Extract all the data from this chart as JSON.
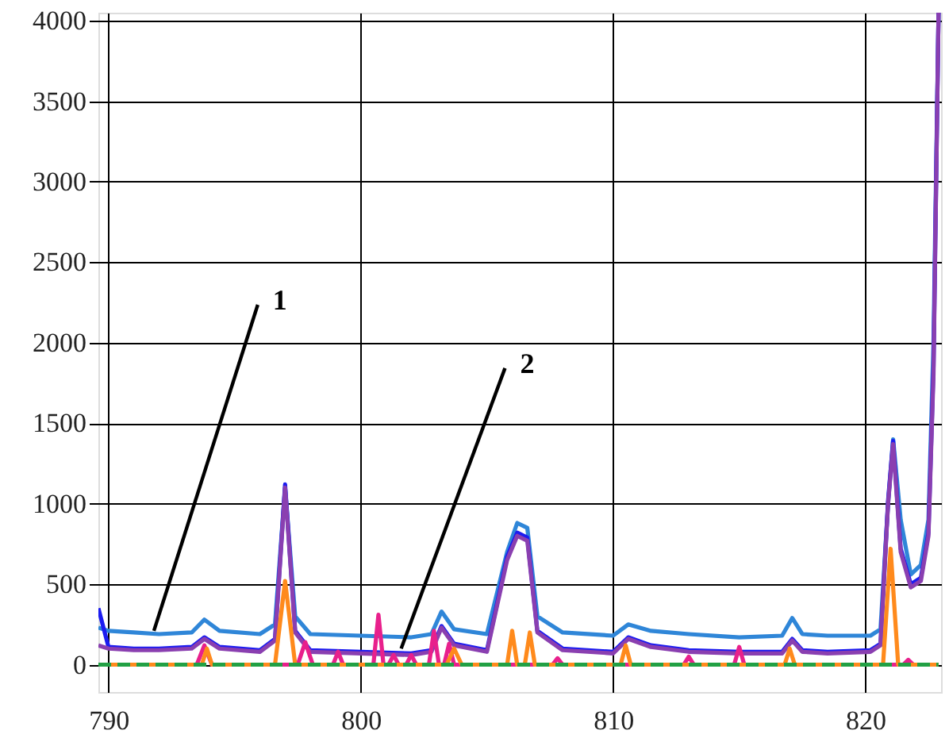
{
  "chart_data": {
    "type": "line",
    "xlim": [
      789.6,
      823
    ],
    "ylim": [
      -170,
      4050
    ],
    "xticks": [
      790,
      800,
      810,
      820
    ],
    "yticks": [
      0,
      500,
      1000,
      1500,
      2000,
      2500,
      3000,
      3500,
      4000
    ],
    "grid": true,
    "legend": false,
    "marker": "none",
    "series": [
      {
        "color": "#2f86d8",
        "line_style": "solid",
        "x": [
          789.6,
          790,
          791,
          792,
          793.3,
          793.8,
          794.4,
          796,
          796.6,
          797,
          797.4,
          798,
          800,
          802,
          802.8,
          803.2,
          803.7,
          805,
          805.8,
          806.2,
          806.6,
          807,
          808,
          810,
          810.6,
          811.5,
          813,
          815,
          816.7,
          817.1,
          817.5,
          818.5,
          820.2,
          820.6,
          820.9,
          821.1,
          821.4,
          821.8,
          822.2,
          822.5,
          822.7,
          822.9
        ],
        "values": [
          230,
          210,
          200,
          190,
          200,
          280,
          210,
          190,
          250,
          1100,
          300,
          190,
          180,
          170,
          190,
          330,
          220,
          190,
          700,
          880,
          850,
          300,
          200,
          180,
          250,
          210,
          190,
          170,
          180,
          290,
          190,
          180,
          180,
          220,
          1000,
          1400,
          900,
          560,
          620,
          900,
          2000,
          4050
        ]
      },
      {
        "color": "#1c1cf0",
        "line_style": "solid",
        "x": [
          789.6,
          790,
          791,
          792,
          793.3,
          793.8,
          794.4,
          796,
          796.6,
          797,
          797.4,
          798,
          800,
          802,
          802.8,
          803.2,
          803.7,
          805,
          805.8,
          806.2,
          806.6,
          807,
          808,
          810,
          810.6,
          811.5,
          813,
          815,
          816.7,
          817.1,
          817.5,
          818.5,
          820.2,
          820.6,
          820.9,
          821.1,
          821.4,
          821.8,
          822.2,
          822.5,
          822.7,
          822.9
        ],
        "values": [
          350,
          110,
          100,
          100,
          110,
          170,
          110,
          90,
          160,
          1120,
          210,
          90,
          80,
          70,
          90,
          240,
          130,
          90,
          670,
          820,
          790,
          210,
          100,
          80,
          170,
          120,
          90,
          80,
          80,
          160,
          90,
          80,
          90,
          130,
          1020,
          1390,
          720,
          500,
          540,
          820,
          1850,
          4050
        ]
      },
      {
        "color": "#8a3fb0",
        "line_style": "solid",
        "x": [
          789.6,
          790,
          791,
          792,
          793.3,
          793.8,
          794.4,
          796,
          796.6,
          797,
          797.4,
          798,
          800,
          802,
          802.8,
          803.2,
          803.7,
          805,
          805.8,
          806.2,
          806.6,
          807,
          808,
          810,
          810.6,
          811.5,
          813,
          815,
          816.7,
          817.1,
          817.5,
          818.5,
          820.2,
          820.6,
          820.9,
          821.1,
          821.4,
          821.8,
          822.2,
          822.5,
          822.7,
          822.9
        ],
        "values": [
          120,
          100,
          90,
          90,
          100,
          160,
          100,
          80,
          150,
          1100,
          200,
          80,
          70,
          60,
          80,
          230,
          120,
          80,
          650,
          800,
          770,
          200,
          90,
          70,
          160,
          110,
          80,
          70,
          70,
          150,
          80,
          70,
          80,
          120,
          1000,
          1370,
          700,
          480,
          520,
          800,
          1800,
          4050
        ]
      },
      {
        "color": "#e8208c",
        "line_style": "solid",
        "x": [
          789.6,
          793.5,
          793.8,
          794.1,
          797.5,
          797.8,
          798.1,
          798.9,
          799.1,
          799.3,
          800.5,
          800.7,
          800.9,
          801.1,
          801.3,
          801.5,
          801.8,
          802,
          802.2,
          802.7,
          802.9,
          803.1,
          803.3,
          803.5,
          803.7,
          807.6,
          807.8,
          808,
          812.8,
          813,
          813.2,
          814.8,
          815,
          815.2,
          821.5,
          821.7,
          821.9,
          822.9
        ],
        "values": [
          0,
          0,
          120,
          0,
          0,
          140,
          0,
          0,
          80,
          0,
          0,
          310,
          0,
          0,
          60,
          0,
          0,
          60,
          0,
          0,
          210,
          0,
          0,
          130,
          0,
          0,
          40,
          0,
          0,
          50,
          0,
          0,
          110,
          0,
          0,
          30,
          0,
          0
        ]
      },
      {
        "color": "#ff8a1c",
        "line_style": "solid",
        "x": [
          789.6,
          793.7,
          793.9,
          794.1,
          796.6,
          797,
          797.4,
          803.4,
          803.7,
          804,
          805.8,
          806,
          806.2,
          806.5,
          806.7,
          806.9,
          810.3,
          810.5,
          810.7,
          816.8,
          817,
          817.2,
          820.7,
          821,
          821.3,
          822.9
        ],
        "values": [
          0,
          0,
          100,
          0,
          0,
          520,
          0,
          0,
          100,
          0,
          0,
          210,
          0,
          0,
          200,
          0,
          0,
          120,
          0,
          0,
          100,
          0,
          0,
          720,
          0,
          0
        ]
      },
      {
        "color": "#22a044",
        "line_style": "dashed",
        "x": [
          789.6,
          822.9
        ],
        "values": [
          0,
          0
        ]
      }
    ],
    "annotations": [
      {
        "text": "1",
        "x": 791.8,
        "y": 210
      },
      {
        "text": "2",
        "x": 801.6,
        "y": 100
      }
    ]
  }
}
